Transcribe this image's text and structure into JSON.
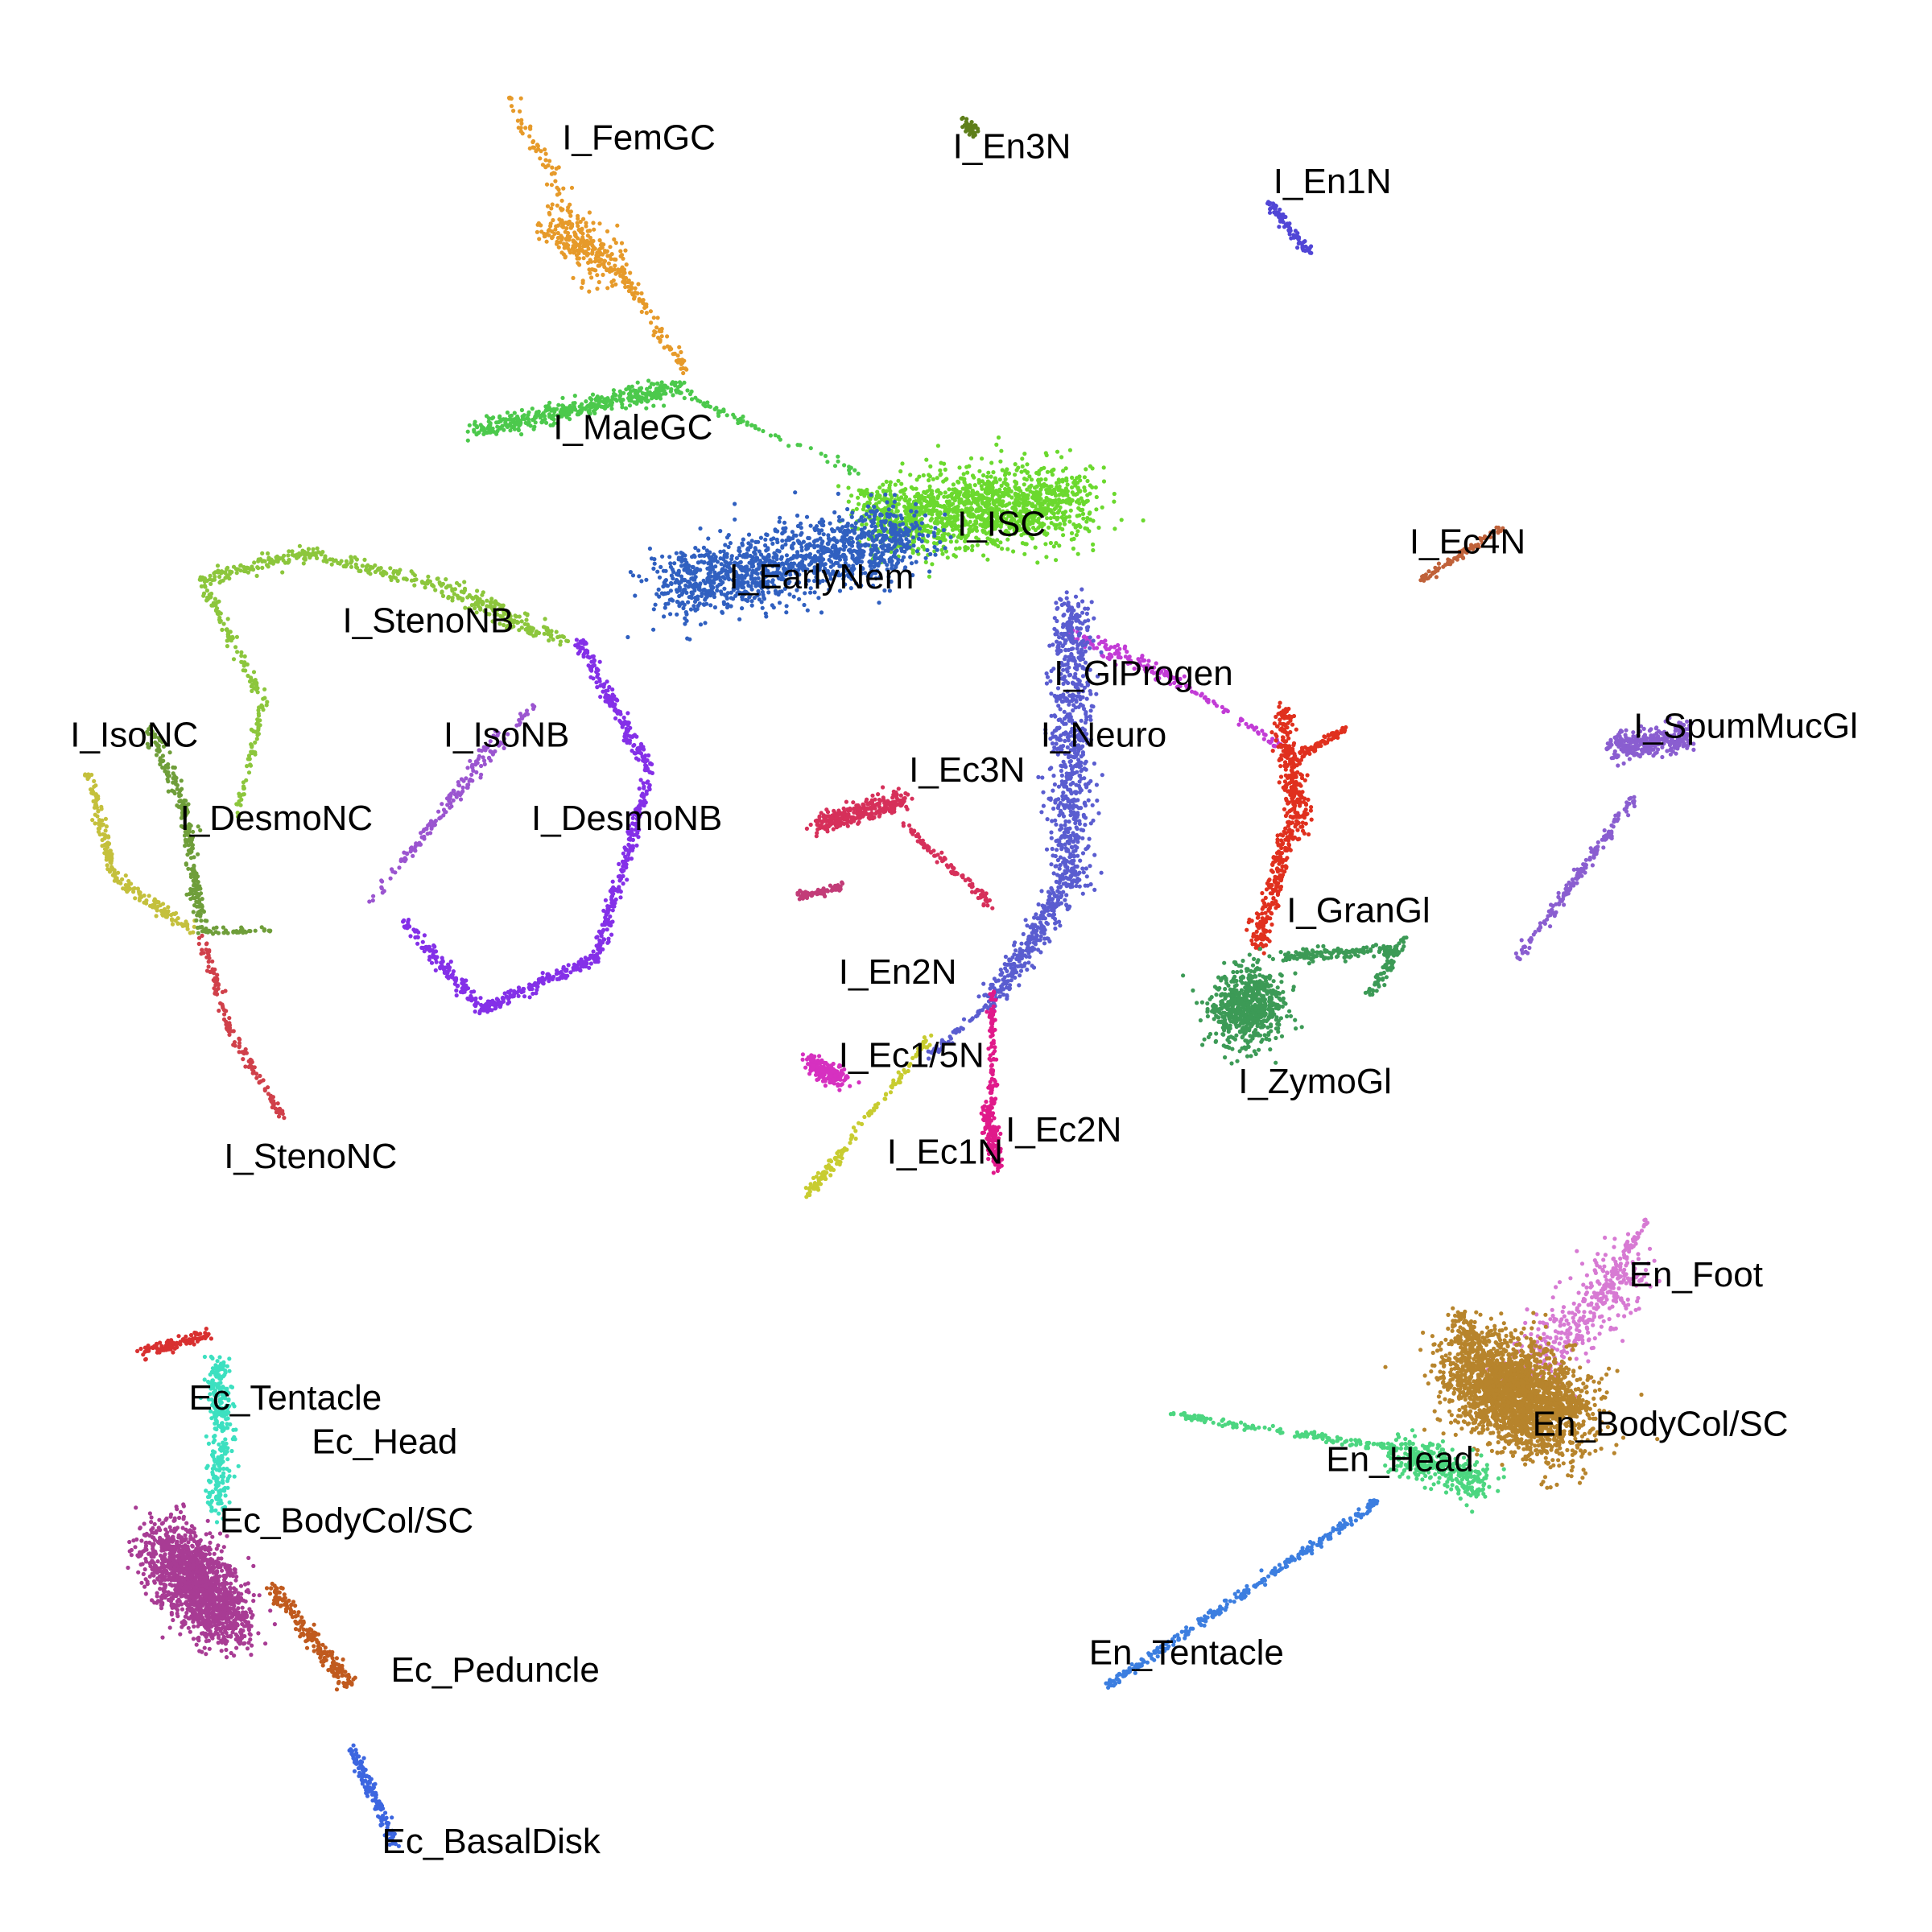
{
  "chart_data": {
    "type": "scatter",
    "title": "",
    "xlabel": "",
    "ylabel": "",
    "axes_visible": false,
    "grid": false,
    "legend": "none",
    "point_size": "small",
    "clusters": [
      {
        "label": "I_FemGC",
        "color": "#E69A2A",
        "segments": [
          [
            -5.2,
            8.9,
            -4.5,
            7.6,
            0.1,
            60
          ],
          [
            -4.7,
            7.5,
            -4.0,
            6.9,
            0.25,
            260
          ],
          [
            -4.0,
            7.0,
            -3.2,
            5.8,
            0.07,
            90
          ]
        ]
      },
      {
        "label": "I_En3N",
        "color": "#5E7F1A",
        "segments": [
          [
            0.0,
            8.6,
            0.1,
            8.5,
            0.07,
            60
          ]
        ]
      },
      {
        "label": "I_En1N",
        "color": "#5146D6",
        "segments": [
          [
            3.45,
            7.7,
            3.9,
            7.1,
            0.05,
            80
          ]
        ]
      },
      {
        "label": "I_MaleGC",
        "color": "#4CC94C",
        "segments": [
          [
            -5.6,
            5.1,
            -3.2,
            5.6,
            0.12,
            420
          ],
          [
            -3.2,
            5.5,
            -1.2,
            4.6,
            0.05,
            60
          ]
        ]
      },
      {
        "label": "I_ISC",
        "color": "#6BD92E",
        "segments": [
          [
            -1.0,
            4.1,
            1.3,
            4.3,
            0.45,
            1400
          ],
          [
            -1.2,
            4.4,
            -0.6,
            4.2,
            0.04,
            40
          ]
        ]
      },
      {
        "label": "I_EarlyNem",
        "color": "#3060C0",
        "segments": [
          [
            -3.4,
            3.3,
            -0.6,
            3.9,
            0.4,
            1300
          ]
        ]
      },
      {
        "label": "I_Ec4N",
        "color": "#C0623A",
        "segments": [
          [
            5.2,
            3.4,
            6.1,
            4.0,
            0.04,
            80
          ]
        ]
      },
      {
        "label": "I_StenoNB",
        "color": "#8CC63C",
        "segments": [
          [
            -5.9,
            3.3,
            -7.5,
            3.7,
            0.08,
            120
          ],
          [
            -7.5,
            3.7,
            -8.7,
            3.4,
            0.08,
            120
          ],
          [
            -8.7,
            3.4,
            -8.0,
            2.0,
            0.06,
            100
          ],
          [
            -8.0,
            2.0,
            -8.3,
            0.7,
            0.05,
            60
          ],
          [
            -5.9,
            3.3,
            -4.6,
            2.7,
            0.12,
            160
          ]
        ]
      },
      {
        "label": "I_GlProgen",
        "color": "#C23CD6",
        "segments": [
          [
            1.2,
            2.8,
            2.5,
            2.2,
            0.1,
            120
          ],
          [
            2.5,
            2.2,
            3.6,
            1.5,
            0.04,
            50
          ]
        ]
      },
      {
        "label": "I_SpumMucGl",
        "color": "#8A5ED0",
        "segments": [
          [
            7.4,
            1.5,
            8.2,
            1.6,
            0.15,
            320
          ],
          [
            6.3,
            -0.9,
            7.6,
            0.9,
            0.06,
            160
          ]
        ]
      },
      {
        "label": "I_Neuro",
        "color": "#5A5DD0",
        "segments": [
          [
            1.2,
            3.1,
            1.2,
            0.0,
            0.25,
            700
          ],
          [
            1.2,
            0.0,
            0.3,
            -1.4,
            0.15,
            300
          ],
          [
            0.3,
            -1.4,
            -0.4,
            -2.0,
            0.05,
            50
          ]
        ]
      },
      {
        "label": "I_IsoNB",
        "color": "#9B55D0",
        "segments": [
          [
            -4.9,
            2.0,
            -6.4,
            0.2,
            0.04,
            90
          ],
          [
            -5.3,
            1.7,
            -6.8,
            -0.3,
            0.04,
            80
          ]
        ]
      },
      {
        "label": "I_DesmoNB",
        "color": "#8430E8",
        "segments": [
          [
            -4.4,
            2.7,
            -3.6,
            1.2,
            0.07,
            180
          ],
          [
            -3.6,
            1.2,
            -4.2,
            -0.9,
            0.07,
            200
          ],
          [
            -4.2,
            -0.9,
            -5.5,
            -1.5,
            0.07,
            180
          ],
          [
            -5.5,
            -1.5,
            -6.4,
            -0.5,
            0.08,
            140
          ]
        ]
      },
      {
        "label": "I_IsoNC",
        "color": "#C4C03C",
        "segments": [
          [
            -10.0,
            1.2,
            -9.7,
            0.0,
            0.07,
            100
          ],
          [
            -9.7,
            0.0,
            -8.8,
            -0.6,
            0.07,
            100
          ]
        ]
      },
      {
        "label": "I_DesmoNC",
        "color": "#6F9E3A",
        "segments": [
          [
            -9.3,
            1.7,
            -8.9,
            0.8,
            0.07,
            90
          ],
          [
            -8.9,
            0.8,
            -8.7,
            -0.6,
            0.08,
            140
          ],
          [
            -8.7,
            -0.6,
            -7.9,
            -0.6,
            0.04,
            40
          ]
        ]
      },
      {
        "label": "I_Ec3N",
        "color": "#D6305A",
        "segments": [
          [
            -1.7,
            0.6,
            -0.7,
            0.9,
            0.12,
            280
          ],
          [
            -0.7,
            0.6,
            0.3,
            -0.3,
            0.06,
            90
          ]
        ]
      },
      {
        "label": "I_En2N",
        "color": "#C23C78",
        "segments": [
          [
            -1.9,
            -0.2,
            -1.4,
            -0.1,
            0.05,
            80
          ]
        ]
      },
      {
        "label": "I_GranGl",
        "color": "#E0301E",
        "segments": [
          [
            3.6,
            1.9,
            3.8,
            0.6,
            0.12,
            280
          ],
          [
            3.7,
            0.6,
            3.3,
            -0.8,
            0.12,
            220
          ],
          [
            3.8,
            1.4,
            4.3,
            1.7,
            0.05,
            70
          ]
        ]
      },
      {
        "label": "I_ZymoGl",
        "color": "#3C9A56",
        "segments": [
          [
            3.1,
            -1.6,
            3.3,
            -1.3,
            0.4,
            650
          ],
          [
            3.6,
            -0.9,
            4.9,
            -0.8,
            0.07,
            150
          ],
          [
            4.6,
            -1.3,
            5.0,
            -0.7,
            0.08,
            70
          ]
        ]
      },
      {
        "label": "I_StenoNC",
        "color": "#D0404A",
        "segments": [
          [
            -8.7,
            -0.7,
            -8.4,
            -1.7,
            0.05,
            60
          ],
          [
            -8.4,
            -1.7,
            -7.8,
            -2.7,
            0.05,
            70
          ]
        ]
      },
      {
        "label": "I_Ec1/5N",
        "color": "#D631C0",
        "segments": [
          [
            -1.8,
            -2.1,
            -1.4,
            -2.3,
            0.12,
            180
          ]
        ]
      },
      {
        "label": "I_Ec1N",
        "color": "#C8CC30",
        "segments": [
          [
            -0.4,
            -1.8,
            -1.4,
            -3.1,
            0.04,
            70
          ],
          [
            -1.4,
            -3.1,
            -1.8,
            -3.6,
            0.06,
            70
          ]
        ]
      },
      {
        "label": "I_Ec2N",
        "color": "#E01A8A",
        "segments": [
          [
            0.3,
            -1.3,
            0.3,
            -2.6,
            0.04,
            90
          ],
          [
            0.25,
            -2.6,
            0.35,
            -3.3,
            0.08,
            160
          ]
        ]
      },
      {
        "label": "En_Foot",
        "color": "#D77AD3",
        "segments": [
          [
            7.6,
            -4.4,
            6.4,
            -5.6,
            0.35,
            380
          ],
          [
            7.8,
            -3.8,
            7.2,
            -4.8,
            0.06,
            60
          ]
        ]
      },
      {
        "label": "En_BodyCol/SC",
        "color": "#B7842C",
        "segments": [
          [
            5.8,
            -5.6,
            6.8,
            -6.2,
            0.55,
            2400
          ],
          [
            5.6,
            -5.0,
            5.9,
            -5.6,
            0.15,
            120
          ]
        ]
      },
      {
        "label": "En_Head",
        "color": "#4CD680",
        "segments": [
          [
            2.3,
            -6.1,
            4.9,
            -6.5,
            0.04,
            150
          ],
          [
            4.9,
            -6.5,
            5.9,
            -6.9,
            0.22,
            350
          ]
        ]
      },
      {
        "label": "En_Tentacle",
        "color": "#3C7EE0",
        "segments": [
          [
            4.7,
            -7.1,
            1.6,
            -9.2,
            0.05,
            300
          ]
        ]
      },
      {
        "label": "Ec_Tentacle",
        "color": "#D83030",
        "segments": [
          [
            -9.4,
            -5.4,
            -8.6,
            -5.2,
            0.06,
            110
          ]
        ]
      },
      {
        "label": "Ec_Head",
        "color": "#3CE0C0",
        "segments": [
          [
            -8.5,
            -5.5,
            -8.5,
            -7.2,
            0.15,
            300
          ]
        ]
      },
      {
        "label": "Ec_BodyCol/SC",
        "color": "#A83C94",
        "segments": [
          [
            -9.1,
            -7.6,
            -8.4,
            -8.5,
            0.4,
            1500
          ]
        ]
      },
      {
        "label": "Ec_Peduncle",
        "color": "#C05A1E",
        "segments": [
          [
            -7.9,
            -8.1,
            -7.0,
            -9.2,
            0.1,
            200
          ]
        ]
      },
      {
        "label": "Ec_BasalDisk",
        "color": "#3C66E0",
        "segments": [
          [
            -7.0,
            -9.9,
            -6.5,
            -11.0,
            0.07,
            140
          ]
        ]
      }
    ],
    "labels": [
      {
        "text": "I_FemGC",
        "x": -4.6,
        "y": 8.3
      },
      {
        "text": "I_En3N",
        "x": -0.15,
        "y": 8.2
      },
      {
        "text": "I_En1N",
        "x": 3.5,
        "y": 7.8
      },
      {
        "text": "I_MaleGC",
        "x": -4.7,
        "y": 5.0
      },
      {
        "text": "I_ISC",
        "x": -0.1,
        "y": 3.9
      },
      {
        "text": "I_EarlyNem",
        "x": -2.7,
        "y": 3.3
      },
      {
        "text": "I_Ec4N",
        "x": 5.05,
        "y": 3.7
      },
      {
        "text": "I_StenoNB",
        "x": -7.1,
        "y": 2.8
      },
      {
        "text": "I_GlProgen",
        "x": 1.0,
        "y": 2.2
      },
      {
        "text": "I_SpumMucGl",
        "x": 7.6,
        "y": 1.6
      },
      {
        "text": "I_Neuro",
        "x": 0.85,
        "y": 1.5
      },
      {
        "text": "I_IsoNB",
        "x": -5.95,
        "y": 1.5
      },
      {
        "text": "I_IsoNC",
        "x": -10.2,
        "y": 1.5
      },
      {
        "text": "I_Ec3N",
        "x": -0.65,
        "y": 1.1
      },
      {
        "text": "I_DesmoNC",
        "x": -8.95,
        "y": 0.55
      },
      {
        "text": "I_DesmoNB",
        "x": -4.95,
        "y": 0.55
      },
      {
        "text": "I_GranGl",
        "x": 3.65,
        "y": -0.5
      },
      {
        "text": "I_En2N",
        "x": -1.45,
        "y": -1.2
      },
      {
        "text": "I_Ec1/5N",
        "x": -1.45,
        "y": -2.15
      },
      {
        "text": "I_ZymoGl",
        "x": 3.1,
        "y": -2.45
      },
      {
        "text": "I_Ec2N",
        "x": 0.45,
        "y": -3.0
      },
      {
        "text": "I_Ec1N",
        "x": -0.9,
        "y": -3.25
      },
      {
        "text": "I_StenoNC",
        "x": -8.45,
        "y": -3.3
      },
      {
        "text": "En_Foot",
        "x": 7.55,
        "y": -4.65
      },
      {
        "text": "Ec_Tentacle",
        "x": -8.85,
        "y": -6.05
      },
      {
        "text": "En_BodyCol/SC",
        "x": 6.45,
        "y": -6.35
      },
      {
        "text": "Ec_Head",
        "x": -7.45,
        "y": -6.55
      },
      {
        "text": "En_Head",
        "x": 4.1,
        "y": -6.75
      },
      {
        "text": "Ec_BodyCol/SC",
        "x": -8.5,
        "y": -7.45
      },
      {
        "text": "En_Tentacle",
        "x": 1.4,
        "y": -8.95
      },
      {
        "text": "Ec_Peduncle",
        "x": -6.55,
        "y": -9.15
      },
      {
        "text": "Ec_BasalDisk",
        "x": -6.65,
        "y": -11.1
      }
    ],
    "xlim": [
      -11,
      11
    ],
    "ylim": [
      -12,
      10
    ]
  }
}
